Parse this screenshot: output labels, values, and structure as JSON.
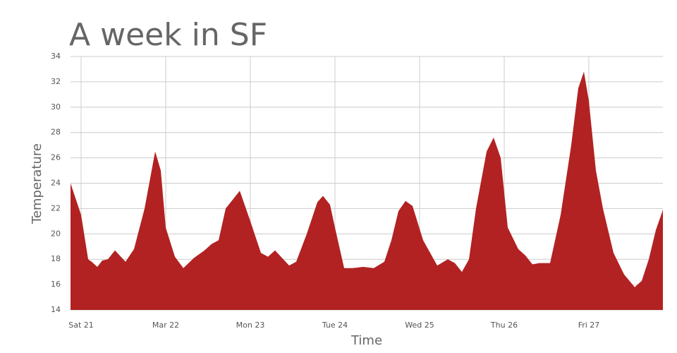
{
  "chart_data": {
    "type": "area",
    "title": "A week in SF",
    "xlabel": "Time",
    "ylabel": "Temperature",
    "color": "#b22222",
    "grid": true,
    "x": [
      -3,
      0,
      2,
      3,
      4.6,
      6,
      7.6,
      9.6,
      12.6,
      15,
      18,
      21,
      22.6,
      24,
      26.6,
      29,
      32,
      35,
      37,
      39,
      41,
      45,
      48,
      51,
      53,
      55,
      59,
      61,
      64,
      67,
      68.6,
      70.6,
      72,
      74.6,
      77,
      80,
      83,
      86,
      88,
      90,
      92,
      94,
      97,
      101,
      104,
      106,
      108,
      110,
      112,
      115,
      117,
      119,
      121,
      124,
      126,
      128,
      130,
      133,
      136,
      139,
      141,
      142.6,
      144,
      146,
      148,
      151,
      154,
      157,
      159,
      161,
      163,
      165
    ],
    "values": [
      24,
      21.5,
      18,
      17.8,
      17.4,
      17.9,
      18,
      18.7,
      17.8,
      18.8,
      22,
      26.5,
      25,
      20.5,
      18.2,
      17.3,
      18.1,
      18.7,
      19.2,
      19.5,
      22,
      23.4,
      21,
      18.5,
      18.2,
      18.7,
      17.5,
      17.8,
      20,
      22.5,
      23,
      22.3,
      20.5,
      17.3,
      17.3,
      17.4,
      17.3,
      17.8,
      19.5,
      21.8,
      22.6,
      22.2,
      19.5,
      17.5,
      18,
      17.7,
      17,
      18,
      22,
      26.5,
      27.6,
      26,
      20.5,
      18.8,
      18.3,
      17.6,
      17.7,
      17.7,
      21.5,
      27,
      31.5,
      32.8,
      30.5,
      25,
      22,
      18.5,
      16.8,
      15.8,
      16.3,
      18,
      20.3,
      21.9
    ],
    "xlim": [
      -3,
      165
    ],
    "xticks": [
      {
        "value": 0,
        "label": "Sat 21"
      },
      {
        "value": 24,
        "label": "Mar 22"
      },
      {
        "value": 48,
        "label": "Mon 23"
      },
      {
        "value": 72,
        "label": "Tue 24"
      },
      {
        "value": 96,
        "label": "Wed 25"
      },
      {
        "value": 120,
        "label": "Thu 26"
      },
      {
        "value": 144,
        "label": "Fri 27"
      }
    ],
    "ylim": [
      14,
      34
    ],
    "yticks": [
      14,
      16,
      18,
      20,
      22,
      24,
      26,
      28,
      30,
      32,
      34
    ]
  }
}
